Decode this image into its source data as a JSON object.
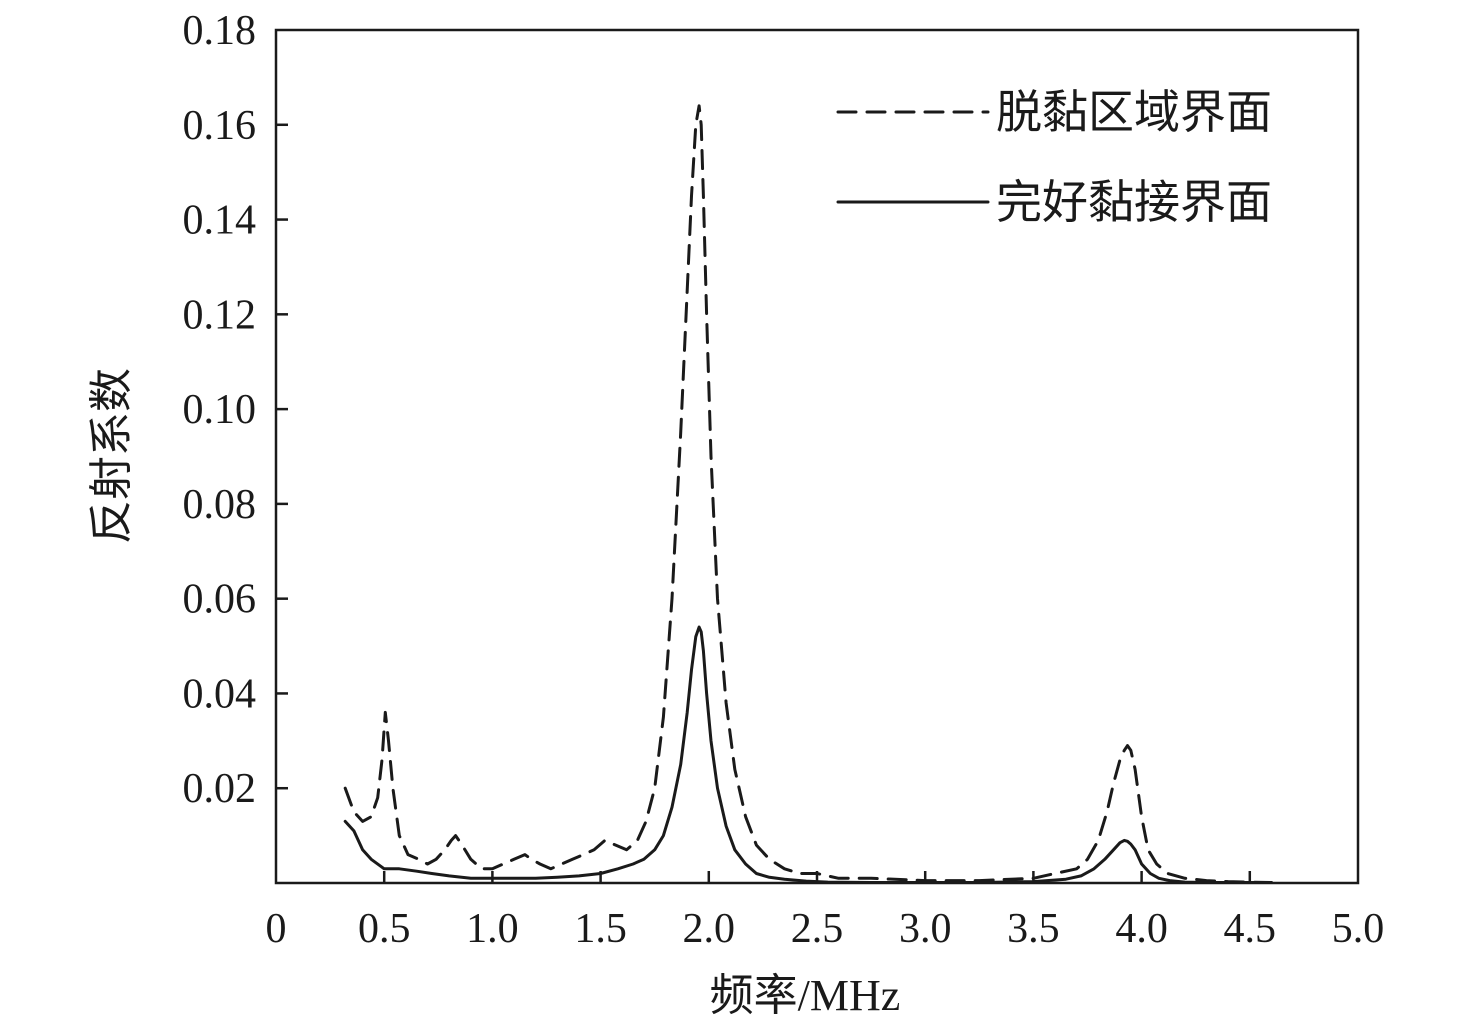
{
  "chart_data": {
    "type": "line",
    "title": "",
    "xlabel": "频率/MHz",
    "ylabel": "反射系数",
    "xlim": [
      0,
      5.0
    ],
    "ylim": [
      0,
      0.18
    ],
    "x_ticks": [
      "0",
      "0.5",
      "1.0",
      "1.5",
      "2.0",
      "2.5",
      "3.0",
      "3.5",
      "4.0",
      "4.5",
      "5.0"
    ],
    "y_ticks": [
      "0.02",
      "0.04",
      "0.06",
      "0.08",
      "0.10",
      "0.12",
      "0.14",
      "0.16",
      "0.18"
    ],
    "grid": false,
    "legend_position": "top-right",
    "series": [
      {
        "name": "脱黏区域界面",
        "style": "dashed",
        "color": "#1a1a1a",
        "x": [
          0.32,
          0.36,
          0.4,
          0.44,
          0.47,
          0.49,
          0.505,
          0.52,
          0.54,
          0.57,
          0.61,
          0.66,
          0.7,
          0.74,
          0.78,
          0.81,
          0.83,
          0.86,
          0.9,
          0.95,
          1.0,
          1.05,
          1.1,
          1.15,
          1.18,
          1.22,
          1.27,
          1.32,
          1.37,
          1.42,
          1.47,
          1.52,
          1.57,
          1.62,
          1.67,
          1.71,
          1.75,
          1.79,
          1.83,
          1.87,
          1.9,
          1.92,
          1.94,
          1.955,
          1.965,
          1.975,
          1.99,
          2.01,
          2.04,
          2.08,
          2.12,
          2.17,
          2.22,
          2.28,
          2.35,
          2.42,
          2.5,
          2.6,
          2.75,
          3.0,
          3.25,
          3.5,
          3.6,
          3.7,
          3.75,
          3.8,
          3.84,
          3.87,
          3.9,
          3.92,
          3.935,
          3.95,
          3.97,
          4.0,
          4.03,
          4.07,
          4.12,
          4.2,
          4.3,
          4.4,
          4.5,
          4.6
        ],
        "values": [
          0.02,
          0.015,
          0.013,
          0.014,
          0.018,
          0.026,
          0.036,
          0.03,
          0.02,
          0.01,
          0.006,
          0.005,
          0.004,
          0.005,
          0.007,
          0.009,
          0.01,
          0.008,
          0.005,
          0.003,
          0.003,
          0.004,
          0.005,
          0.006,
          0.005,
          0.004,
          0.003,
          0.004,
          0.005,
          0.006,
          0.007,
          0.009,
          0.008,
          0.007,
          0.009,
          0.013,
          0.02,
          0.035,
          0.06,
          0.095,
          0.125,
          0.145,
          0.16,
          0.164,
          0.16,
          0.145,
          0.12,
          0.09,
          0.06,
          0.038,
          0.024,
          0.014,
          0.008,
          0.005,
          0.003,
          0.002,
          0.002,
          0.001,
          0.001,
          0.0005,
          0.0005,
          0.001,
          0.002,
          0.003,
          0.005,
          0.009,
          0.015,
          0.021,
          0.026,
          0.028,
          0.029,
          0.028,
          0.024,
          0.014,
          0.007,
          0.004,
          0.002,
          0.001,
          0.0005,
          0.0003,
          0.0002,
          0.0001
        ]
      },
      {
        "name": "完好黏接界面",
        "style": "solid",
        "color": "#1a1a1a",
        "x": [
          0.32,
          0.36,
          0.4,
          0.44,
          0.5,
          0.57,
          0.65,
          0.72,
          0.8,
          0.9,
          1.0,
          1.1,
          1.2,
          1.3,
          1.4,
          1.5,
          1.58,
          1.65,
          1.7,
          1.75,
          1.79,
          1.83,
          1.87,
          1.9,
          1.92,
          1.94,
          1.955,
          1.965,
          1.975,
          1.99,
          2.01,
          2.04,
          2.08,
          2.12,
          2.17,
          2.22,
          2.28,
          2.35,
          2.45,
          2.55,
          2.75,
          3.0,
          3.25,
          3.5,
          3.65,
          3.72,
          3.78,
          3.83,
          3.87,
          3.9,
          3.92,
          3.935,
          3.95,
          3.97,
          4.0,
          4.04,
          4.08,
          4.13,
          4.2,
          4.3,
          4.4,
          4.5,
          4.6
        ],
        "values": [
          0.013,
          0.011,
          0.007,
          0.005,
          0.003,
          0.003,
          0.0025,
          0.002,
          0.0015,
          0.001,
          0.001,
          0.001,
          0.001,
          0.0012,
          0.0015,
          0.002,
          0.003,
          0.004,
          0.005,
          0.007,
          0.01,
          0.016,
          0.025,
          0.036,
          0.045,
          0.052,
          0.054,
          0.053,
          0.049,
          0.04,
          0.03,
          0.02,
          0.012,
          0.007,
          0.004,
          0.002,
          0.0012,
          0.0008,
          0.0004,
          0.0002,
          0.0001,
          0.0001,
          0.0001,
          0.0003,
          0.0008,
          0.0015,
          0.003,
          0.005,
          0.007,
          0.0085,
          0.009,
          0.0088,
          0.0082,
          0.007,
          0.004,
          0.002,
          0.001,
          0.0005,
          0.0002,
          0.0001,
          0.0001,
          0.0001,
          0.0001
        ]
      }
    ]
  }
}
